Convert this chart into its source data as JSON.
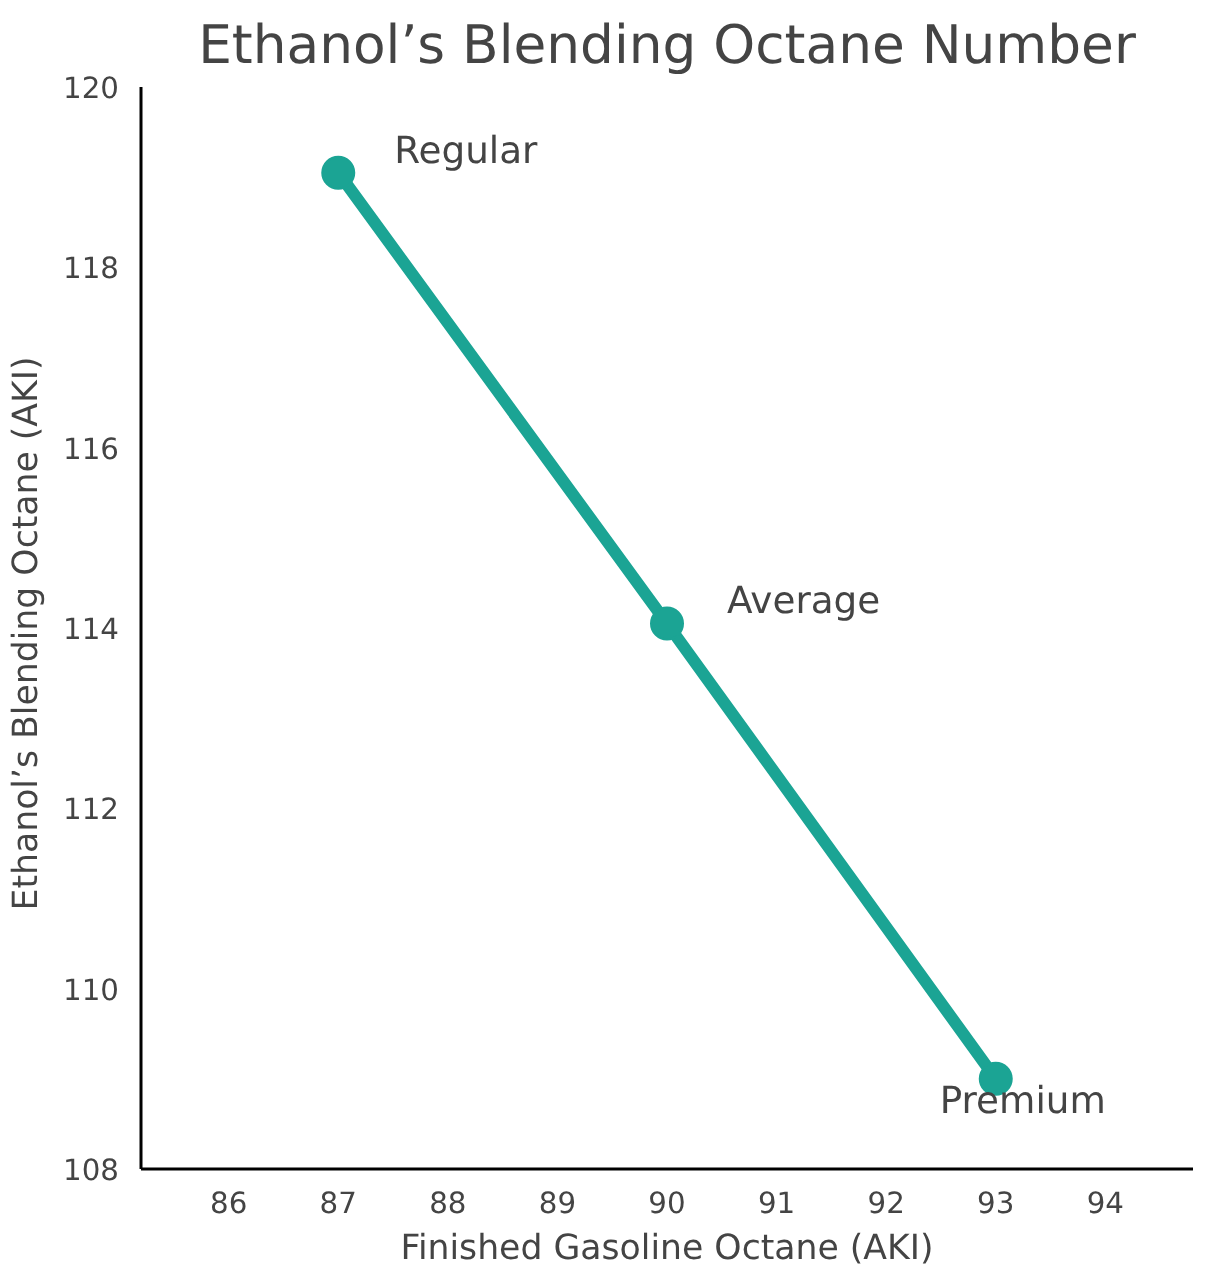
{
  "chart_data": {
    "type": "line",
    "title": "Ethanol’s Blending Octane Number",
    "xlabel": "Finished Gasoline Octane (AKI)",
    "ylabel": "Ethanol’s Blending Octane  (AKI)",
    "x": [
      87,
      90,
      93
    ],
    "values": [
      119.05,
      114.05,
      109.0
    ],
    "color": "#1ba494",
    "marker": "circle",
    "xlim": [
      85.2,
      94.8
    ],
    "xticks": [
      86,
      87,
      88,
      89,
      90,
      91,
      92,
      93,
      94
    ],
    "ylim": [
      108,
      120
    ],
    "yticks": [
      108,
      110,
      112,
      114,
      116,
      118,
      120
    ],
    "grid": false,
    "annotations": [
      {
        "text": "Regular",
        "x": 87,
        "y": 119.05
      },
      {
        "text": "Average",
        "x": 90,
        "y": 114.05
      },
      {
        "text": "Premium",
        "x": 93,
        "y": 109.0
      }
    ]
  }
}
